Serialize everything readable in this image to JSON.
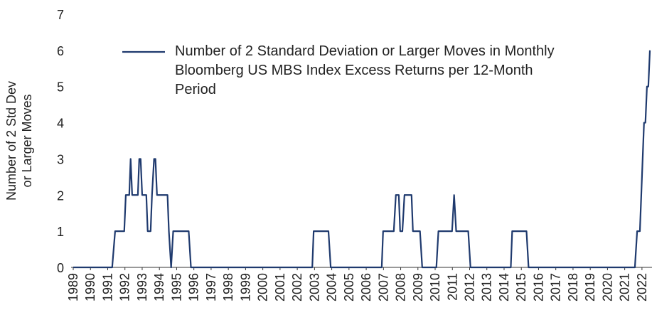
{
  "chart_data": {
    "type": "line",
    "y_label": [
      "Number of 2 Std Dev",
      "or Larger Moves"
    ],
    "x": [
      1989,
      1991.26,
      1991.43,
      1991.96,
      1992.05,
      1992.25,
      1992.33,
      1992.42,
      1992.75,
      1992.83,
      1992.91,
      1993.0,
      1993.24,
      1993.32,
      1993.49,
      1993.57,
      1993.69,
      1993.77,
      1993.86,
      1994.47,
      1994.55,
      1994.68,
      1994.8,
      1995.7,
      1995.83,
      2002.87,
      2002.95,
      2003.81,
      2003.94,
      2006.9,
      2006.98,
      2007.6,
      2007.72,
      2007.89,
      2007.97,
      2008.1,
      2008.22,
      2008.63,
      2008.71,
      2009.12,
      2009.25,
      2010.07,
      2010.19,
      2010.98,
      2011.1,
      2011.22,
      2011.92,
      2012.05,
      2014.39,
      2014.47,
      2015.3,
      2015.42,
      2021.59,
      2021.72,
      2021.88,
      2021.96,
      2022.04,
      2022.12,
      2022.2,
      2022.29,
      2022.37,
      2022.46
    ],
    "series": [
      {
        "name": "Number of 2 Standard Deviation or Larger Moves in Monthly Bloomberg US MBS Index Excess Returns per 12-Month Period",
        "color": "#1f3a6e",
        "values": [
          0,
          0,
          1,
          1,
          2,
          2,
          3,
          2,
          2,
          3,
          3,
          2,
          2,
          1,
          1,
          2,
          3,
          3,
          2,
          2,
          1,
          0,
          1,
          1,
          0,
          0,
          1,
          1,
          0,
          0,
          1,
          1,
          2,
          2,
          1,
          1,
          2,
          2,
          1,
          1,
          0,
          0,
          1,
          1,
          2,
          1,
          1,
          0,
          0,
          1,
          1,
          0,
          0,
          1,
          1,
          2,
          3,
          4,
          4,
          5,
          5,
          6
        ]
      }
    ],
    "xlim": [
      1989,
      2022.5
    ],
    "xticks": [
      1989,
      1990,
      1991,
      1992,
      1993,
      1994,
      1995,
      1996,
      1997,
      1998,
      1999,
      2000,
      2001,
      2002,
      2003,
      2004,
      2005,
      2006,
      2007,
      2008,
      2009,
      2010,
      2011,
      2012,
      2013,
      2014,
      2015,
      2016,
      2017,
      2018,
      2019,
      2020,
      2021,
      2022
    ],
    "ylim": [
      0,
      7
    ],
    "yticks": [
      0,
      1,
      2,
      3,
      4,
      5,
      6,
      7
    ],
    "grid": false,
    "legend": "top"
  }
}
